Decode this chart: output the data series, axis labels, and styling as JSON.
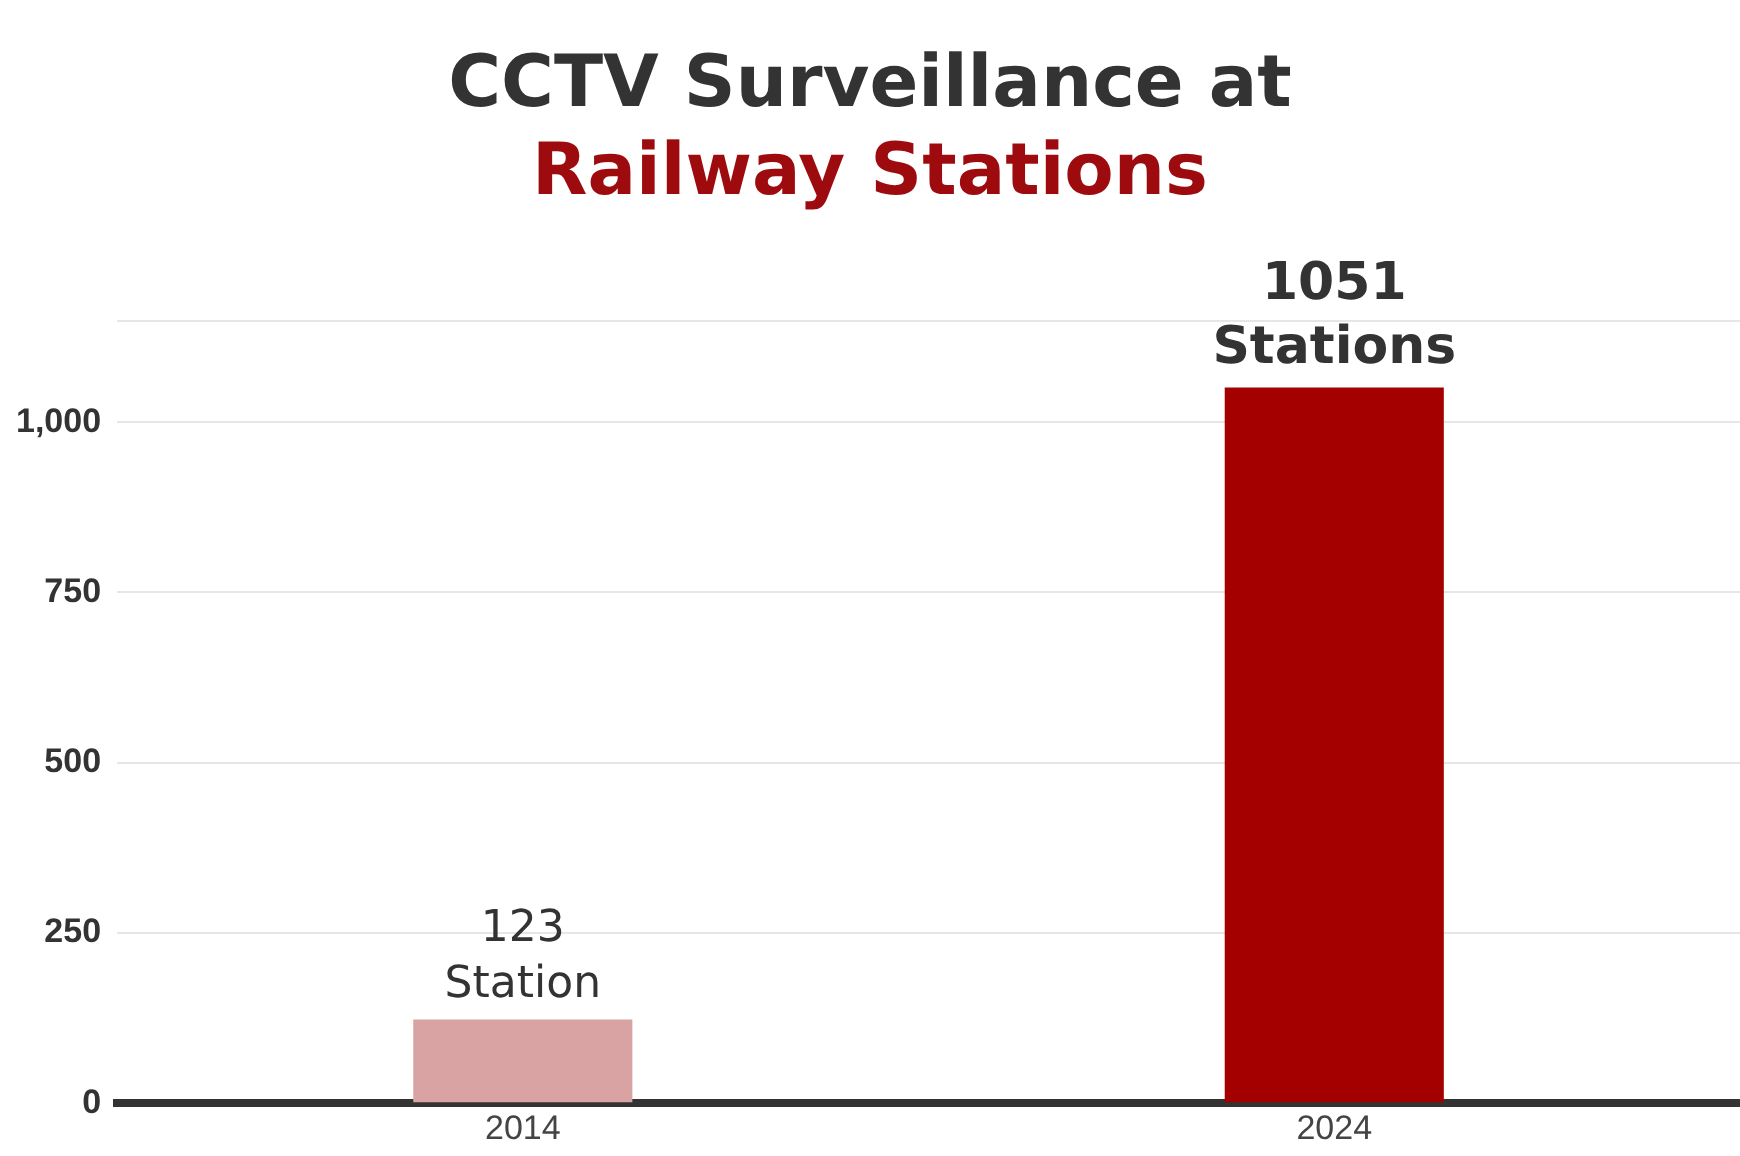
{
  "chart_data": {
    "type": "bar",
    "title": "CCTV Surveillance at\nRailway Stations",
    "categories": [
      "2014",
      "2024"
    ],
    "values": [
      123,
      1051
    ],
    "colors": [
      "#d9a3a3",
      "#a50000"
    ],
    "value_labels": [
      "123\nStation",
      "1051\nStations"
    ],
    "ylim": [
      0,
      1150
    ],
    "yticks": [
      0,
      250,
      500,
      750,
      {
        "value": 1000,
        "label": "1,000"
      }
    ],
    "grid": "y",
    "legend": false
  }
}
